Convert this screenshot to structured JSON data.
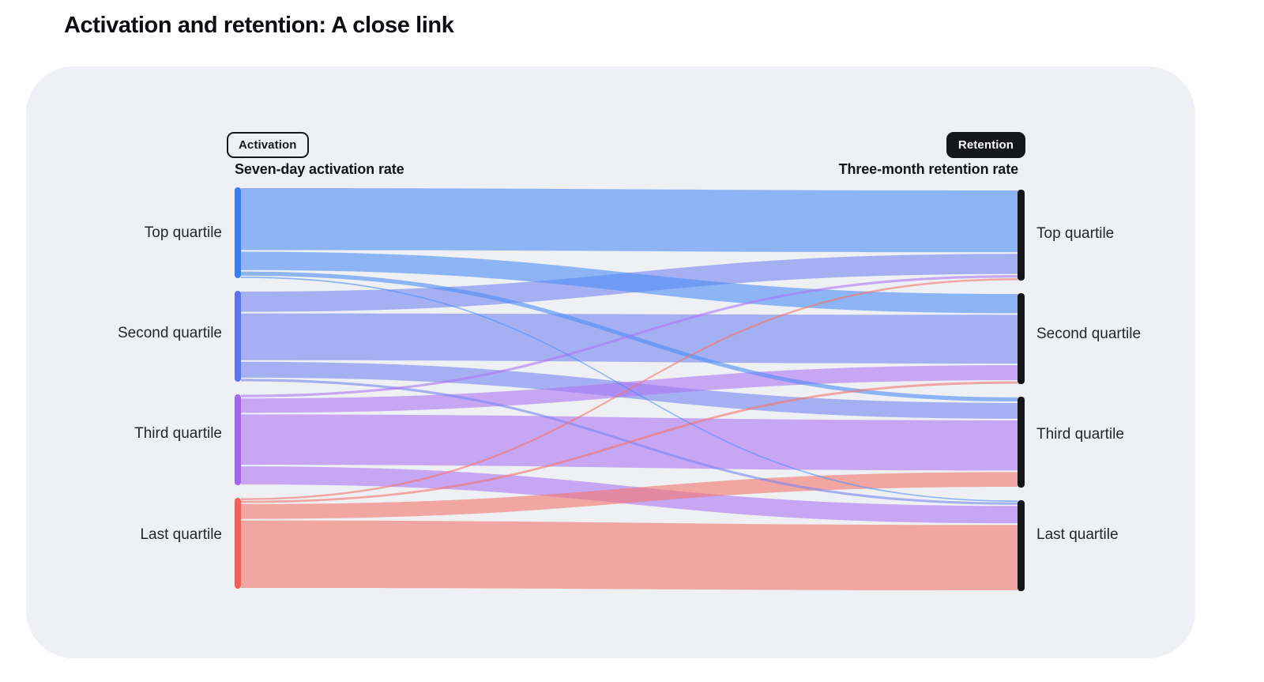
{
  "page": {
    "title": "Activation and retention: A close link"
  },
  "chart_data": {
    "type": "sankey",
    "title": "Activation and retention: A close link",
    "left_badge": "Activation",
    "right_badge": "Retention",
    "left_axis_label": "Seven-day activation rate",
    "right_axis_label": "Three-month retention rate",
    "left_nodes": [
      "Top quartile",
      "Second quartile",
      "Third quartile",
      "Last quartile"
    ],
    "right_nodes": [
      "Top quartile",
      "Second quartile",
      "Third quartile",
      "Last quartile"
    ],
    "values_unit": "approx. share of users, % (estimated from band widths; each quartile = 25)",
    "links": [
      {
        "source": "Top quartile",
        "target": "Top quartile",
        "value": 17.5
      },
      {
        "source": "Top quartile",
        "target": "Second quartile",
        "value": 5.5
      },
      {
        "source": "Top quartile",
        "target": "Third quartile",
        "value": 1.5
      },
      {
        "source": "Top quartile",
        "target": "Last quartile",
        "value": 0.5
      },
      {
        "source": "Second quartile",
        "target": "Top quartile",
        "value": 6.0
      },
      {
        "source": "Second quartile",
        "target": "Second quartile",
        "value": 13.3
      },
      {
        "source": "Second quartile",
        "target": "Third quartile",
        "value": 4.8
      },
      {
        "source": "Second quartile",
        "target": "Last quartile",
        "value": 0.9
      },
      {
        "source": "Third quartile",
        "target": "Top quartile",
        "value": 0.9
      },
      {
        "source": "Third quartile",
        "target": "Second quartile",
        "value": 4.4
      },
      {
        "source": "Third quartile",
        "target": "Third quartile",
        "value": 14.3
      },
      {
        "source": "Third quartile",
        "target": "Last quartile",
        "value": 5.4
      },
      {
        "source": "Last quartile",
        "target": "Top quartile",
        "value": 0.7
      },
      {
        "source": "Last quartile",
        "target": "Second quartile",
        "value": 0.8
      },
      {
        "source": "Last quartile",
        "target": "Third quartile",
        "value": 4.5
      },
      {
        "source": "Last quartile",
        "target": "Last quartile",
        "value": 19.0
      }
    ],
    "colors": [
      {
        "name": "Top quartile",
        "edge": "#3b7ef2",
        "flow": "#4d8ef5"
      },
      {
        "name": "Second quartile",
        "edge": "#5f72ee",
        "flow": "#7585f0"
      },
      {
        "name": "Third quartile",
        "edge": "#a266f0",
        "flow": "#ad75f3"
      },
      {
        "name": "Last quartile",
        "edge": "#f25f57",
        "flow": "#f4756b"
      }
    ],
    "right_bar_color": "#141519",
    "card_background": "#eef0f4",
    "flow_opacity": 0.6,
    "legend_position": "columns-top"
  }
}
